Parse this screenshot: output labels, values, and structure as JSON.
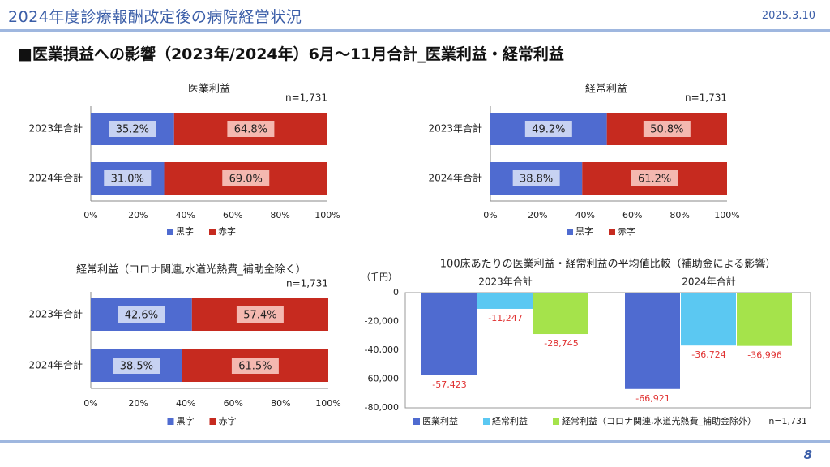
{
  "header": {
    "title": "2024年度診療報酬改定後の病院経営状況",
    "date": "2025.3.10"
  },
  "section_title": "■医業損益への影響（2023年/2024年）6月～11月合計_医業利益・経常利益",
  "page_number": "8",
  "colors": {
    "black_ink": "#4f6bd0",
    "red_ink": "#c62a1f",
    "medical_profit": "#4f6bd0",
    "ordinary_profit": "#5bc8f2",
    "ordinary_excl": "#a5e34b",
    "header_text": "#3b5ea8"
  },
  "chart_data": [
    {
      "type": "bar",
      "orientation": "horizontal-stacked-100",
      "title": "医業利益",
      "n_label": "n=1,731",
      "categories": [
        "2023年合計",
        "2024年合計"
      ],
      "series": [
        {
          "name": "黒字",
          "values": [
            35.2,
            31.0
          ]
        },
        {
          "name": "赤字",
          "values": [
            64.8,
            69.0
          ]
        }
      ],
      "value_labels": [
        [
          "35.2%",
          "64.8%"
        ],
        [
          "31.0%",
          "69.0%"
        ]
      ],
      "xlim": [
        0,
        100
      ],
      "x_ticks": [
        "0%",
        "20%",
        "40%",
        "60%",
        "80%",
        "100%"
      ],
      "legend_position": "bottom"
    },
    {
      "type": "bar",
      "orientation": "horizontal-stacked-100",
      "title": "経常利益",
      "n_label": "n=1,731",
      "categories": [
        "2023年合計",
        "2024年合計"
      ],
      "series": [
        {
          "name": "黒字",
          "values": [
            49.2,
            38.8
          ]
        },
        {
          "name": "赤字",
          "values": [
            50.8,
            61.2
          ]
        }
      ],
      "value_labels": [
        [
          "49.2%",
          "50.8%"
        ],
        [
          "38.8%",
          "61.2%"
        ]
      ],
      "xlim": [
        0,
        100
      ],
      "x_ticks": [
        "0%",
        "20%",
        "40%",
        "60%",
        "80%",
        "100%"
      ],
      "legend_position": "bottom"
    },
    {
      "type": "bar",
      "orientation": "horizontal-stacked-100",
      "title": "経常利益（コロナ関連,水道光熱費_補助金除く）",
      "n_label": "n=1,731",
      "categories": [
        "2023年合計",
        "2024年合計"
      ],
      "series": [
        {
          "name": "黒字",
          "values": [
            42.6,
            38.5
          ]
        },
        {
          "name": "赤字",
          "values": [
            57.4,
            61.5
          ]
        }
      ],
      "value_labels": [
        [
          "42.6%",
          "57.4%"
        ],
        [
          "38.5%",
          "61.5%"
        ]
      ],
      "xlim": [
        0,
        100
      ],
      "x_ticks": [
        "0%",
        "20%",
        "40%",
        "60%",
        "80%",
        "100%"
      ],
      "legend_position": "bottom"
    },
    {
      "type": "bar",
      "orientation": "vertical-grouped",
      "title": "100床あたりの医業利益・経常利益の平均値比較（補助金による影響）",
      "unit_label": "（千円）",
      "n_label": "n=1,731",
      "categories": [
        "2023年合計",
        "2024年合計"
      ],
      "series": [
        {
          "name": "医業利益",
          "values": [
            -57423,
            -66921
          ],
          "labels": [
            "-57,423",
            "-66,921"
          ]
        },
        {
          "name": "経常利益",
          "values": [
            -11247,
            -36724
          ],
          "labels": [
            "-11,247",
            "-36,724"
          ]
        },
        {
          "name": "経常利益（コロナ関連,水道光熱費_補助金除外）",
          "values": [
            -28745,
            -36996
          ],
          "labels": [
            "-28,745",
            "-36,996"
          ]
        }
      ],
      "ylim": [
        -80000,
        0
      ],
      "y_ticks": [
        "0",
        "-20,000",
        "-40,000",
        "-60,000",
        "-80,000"
      ],
      "legend_position": "bottom"
    }
  ]
}
